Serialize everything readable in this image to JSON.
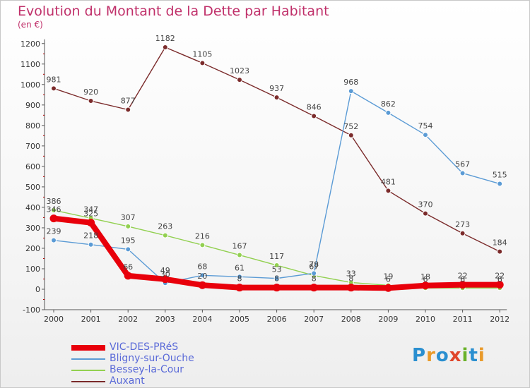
{
  "header": {
    "title": "Evolution du Montant de la Dette par Habitant",
    "unit": "(en €)"
  },
  "logo": {
    "text": "Proxiti",
    "colors": [
      "#2a8fd0",
      "#e99a2a",
      "#2a8fd0",
      "#e0452a",
      "#6ab22a",
      "#2a8fd0",
      "#e99a2a"
    ]
  },
  "chart_data": {
    "type": "line",
    "title": "Evolution du Montant de la Dette par Habitant",
    "subtitle": "(en €)",
    "x": [
      "2000",
      "2001",
      "2002",
      "2003",
      "2004",
      "2005",
      "2006",
      "2007",
      "2008",
      "2009",
      "2010",
      "2011",
      "2012"
    ],
    "ylim": [
      -100,
      1200
    ],
    "yticks": [
      -100,
      0,
      100,
      200,
      300,
      400,
      500,
      600,
      700,
      800,
      900,
      1000,
      1100,
      1200
    ],
    "grid": false,
    "legend_position": "bottom-left",
    "series": [
      {
        "name": "VIC-DES-PRéS",
        "color": "#e8000b",
        "values": [
          346,
          325,
          66,
          49,
          20,
          8,
          8,
          8,
          8,
          6,
          18,
          22,
          22
        ],
        "labels": [
          "346",
          "325",
          "66",
          "49",
          "20",
          "8",
          "8",
          "8",
          "8",
          "6",
          "18",
          "22",
          "22"
        ]
      },
      {
        "name": "Bligny-sur-Ouche",
        "color": "#5b9bd5",
        "values": [
          239,
          218,
          195,
          30,
          68,
          61,
          53,
          78,
          968,
          862,
          754,
          567,
          515
        ],
        "labels": [
          "239",
          "218",
          "195",
          "30",
          "68",
          "61",
          "53",
          "78",
          "968",
          "862",
          "754",
          "567",
          "515"
        ]
      },
      {
        "name": "Bessey-la-Cour",
        "color": "#92d050",
        "values": [
          386,
          347,
          307,
          263,
          216,
          167,
          117,
          67,
          33,
          19,
          6,
          6,
          6
        ],
        "labels": [
          "386",
          "347",
          "307",
          "263",
          "216",
          "167",
          "117",
          "67",
          "33",
          "19",
          "6",
          "6",
          "6"
        ]
      },
      {
        "name": "Auxant",
        "color": "#7b2b2b",
        "values": [
          981,
          920,
          877,
          1182,
          1105,
          1023,
          937,
          846,
          752,
          481,
          370,
          273,
          184
        ],
        "labels": [
          "981",
          "920",
          "877",
          "1182",
          "1105",
          "1023",
          "937",
          "846",
          "752",
          "481",
          "370",
          "273",
          "184"
        ]
      }
    ]
  }
}
